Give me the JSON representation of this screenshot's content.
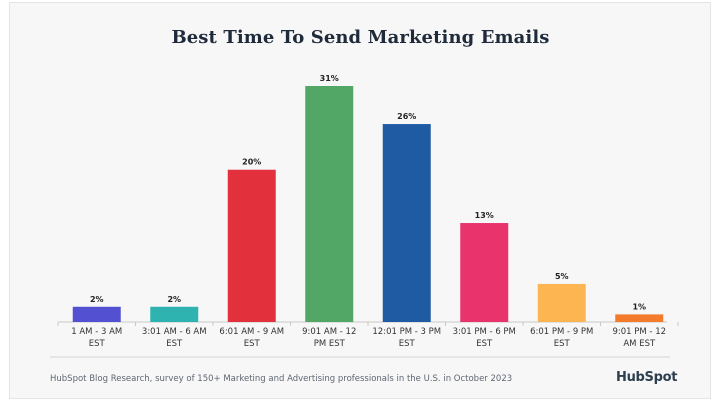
{
  "title": "Best Time To Send Marketing Emails",
  "source": "HubSpot Blog Research, survey of 150+ Marketing and Advertising professionals in the U.S. in October 2023",
  "brand": "HubSpot",
  "chart_data": {
    "type": "bar",
    "title": "Best Time To Send Marketing Emails",
    "xlabel": "",
    "ylabel": "",
    "ylim": [
      0,
      31
    ],
    "grid": false,
    "legend": "none",
    "unit": "%",
    "categories": [
      [
        "1 AM - 3 AM",
        "EST"
      ],
      [
        "3:01 AM - 6 AM",
        "EST"
      ],
      [
        "6:01 AM - 9 AM",
        "EST"
      ],
      [
        "9:01 AM - 12",
        "PM EST"
      ],
      [
        "12:01 PM - 3 PM",
        "EST"
      ],
      [
        "3:01 PM - 6 PM",
        "EST"
      ],
      [
        "6:01 PM - 9 PM",
        "EST"
      ],
      [
        "9:01 PM - 12",
        "AM EST"
      ]
    ],
    "values": [
      2,
      2,
      20,
      31,
      26,
      13,
      5,
      1
    ],
    "data_labels": [
      "2%",
      "2%",
      "20%",
      "31%",
      "26%",
      "13%",
      "5%",
      "1%"
    ],
    "colors": [
      "#5350d2",
      "#2fb3b0",
      "#e3303d",
      "#52a766",
      "#1f5ba3",
      "#e8336d",
      "#fdb552",
      "#f37c2c"
    ]
  }
}
